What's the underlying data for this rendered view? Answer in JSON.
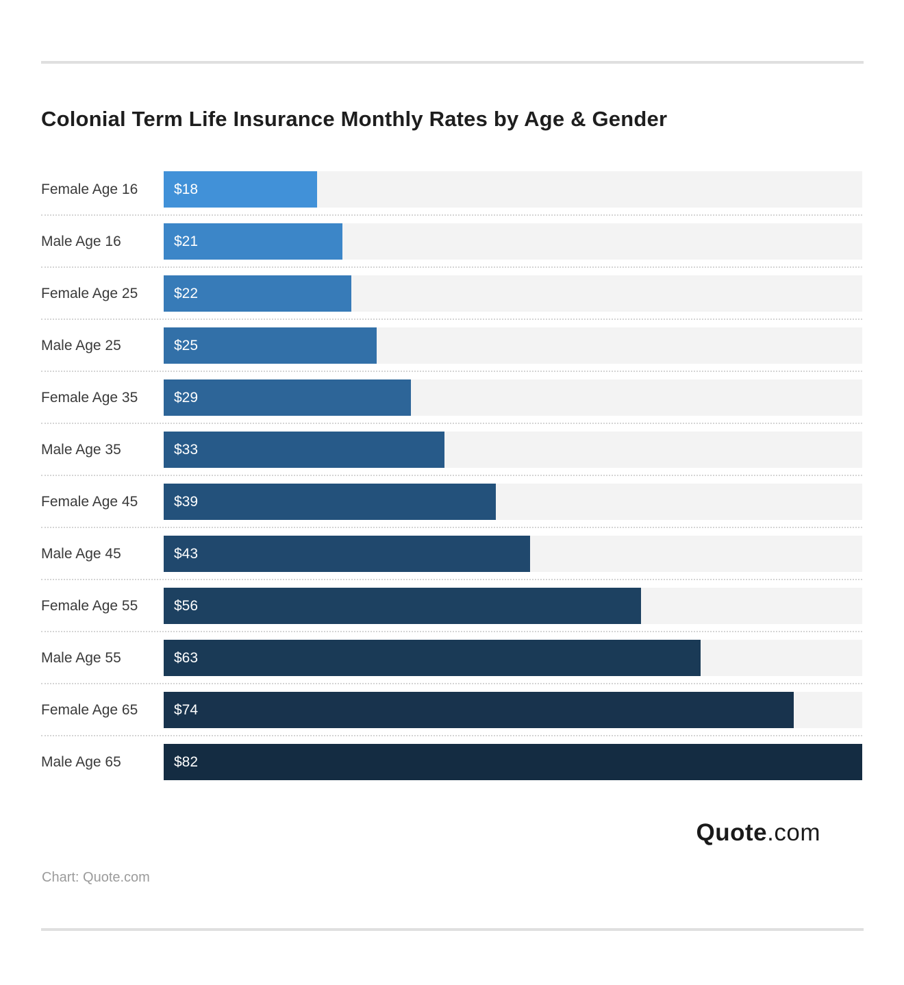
{
  "title": "Colonial Term Life Insurance Monthly Rates by Age & Gender",
  "chart_data": {
    "type": "bar",
    "orientation": "horizontal",
    "title": "Colonial Term Life Insurance Monthly Rates by Age & Gender",
    "categories": [
      "Female Age 16",
      "Male Age 16",
      "Female Age 25",
      "Male Age 25",
      "Female Age 35",
      "Male Age 35",
      "Female Age 45",
      "Male Age 45",
      "Female Age 55",
      "Male Age 55",
      "Female Age 65",
      "Male Age 65"
    ],
    "values": [
      18,
      21,
      22,
      25,
      29,
      33,
      39,
      43,
      56,
      63,
      74,
      82
    ],
    "value_labels": [
      "$18",
      "$21",
      "$22",
      "$25",
      "$29",
      "$33",
      "$39",
      "$43",
      "$56",
      "$63",
      "$74",
      "$82"
    ],
    "bar_colors": [
      "#4191d8",
      "#3c86c8",
      "#377bb8",
      "#3270a8",
      "#2d6598",
      "#275a89",
      "#23517b",
      "#20486d",
      "#1d4161",
      "#1a3a56",
      "#18334d",
      "#142c42"
    ],
    "xlim": [
      0,
      82
    ],
    "track_color": "#f3f3f3",
    "grid": false,
    "legend": false,
    "value_label_position": "inside-left"
  },
  "footer": {
    "logo_bold": "Quote",
    "logo_rest": ".com",
    "source": "Chart: Quote.com"
  }
}
